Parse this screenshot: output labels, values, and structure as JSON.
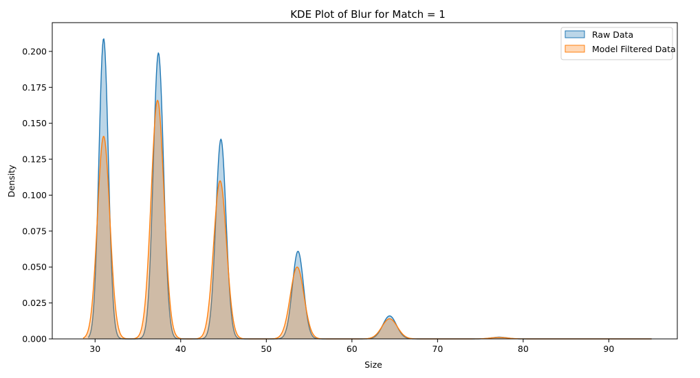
{
  "chart_data": {
    "type": "area",
    "title": "KDE Plot of Blur for Match = 1",
    "xlabel": "Size",
    "ylabel": "Density",
    "xlim": [
      25,
      98
    ],
    "ylim": [
      0,
      0.22
    ],
    "xticks": [
      30,
      40,
      50,
      60,
      70,
      80,
      90
    ],
    "yticks": [
      0.0,
      0.025,
      0.05,
      0.075,
      0.1,
      0.125,
      0.15,
      0.175,
      0.2
    ],
    "ytick_labels": [
      "0.000",
      "0.025",
      "0.050",
      "0.075",
      "0.100",
      "0.125",
      "0.150",
      "0.175",
      "0.200"
    ],
    "grid": false,
    "legend_position": "top-right",
    "series": [
      {
        "name": "Raw Data",
        "color": "#1f77b4",
        "fill": "#1f77b4",
        "fill_opacity": 0.3,
        "x_range": [
          29.2,
          95
        ],
        "peaks": [
          {
            "center": 31.0,
            "height": 0.209,
            "width": 0.55
          },
          {
            "center": 37.4,
            "height": 0.199,
            "width": 0.6
          },
          {
            "center": 44.7,
            "height": 0.139,
            "width": 0.6
          },
          {
            "center": 53.7,
            "height": 0.061,
            "width": 0.65
          },
          {
            "center": 64.4,
            "height": 0.016,
            "width": 0.8
          },
          {
            "center": 77.2,
            "height": 0.0012,
            "width": 0.9
          }
        ]
      },
      {
        "name": "Model Filtered Data",
        "color": "#ff7f0e",
        "fill": "#ff7f0e",
        "fill_opacity": 0.3,
        "x_range": [
          28.6,
          95
        ],
        "peaks": [
          {
            "center": 31.0,
            "height": 0.141,
            "width": 0.72
          },
          {
            "center": 37.3,
            "height": 0.166,
            "width": 0.75
          },
          {
            "center": 44.6,
            "height": 0.11,
            "width": 0.75
          },
          {
            "center": 53.6,
            "height": 0.05,
            "width": 0.8
          },
          {
            "center": 64.4,
            "height": 0.014,
            "width": 0.9
          },
          {
            "center": 77.2,
            "height": 0.001,
            "width": 1.0
          }
        ]
      }
    ]
  }
}
